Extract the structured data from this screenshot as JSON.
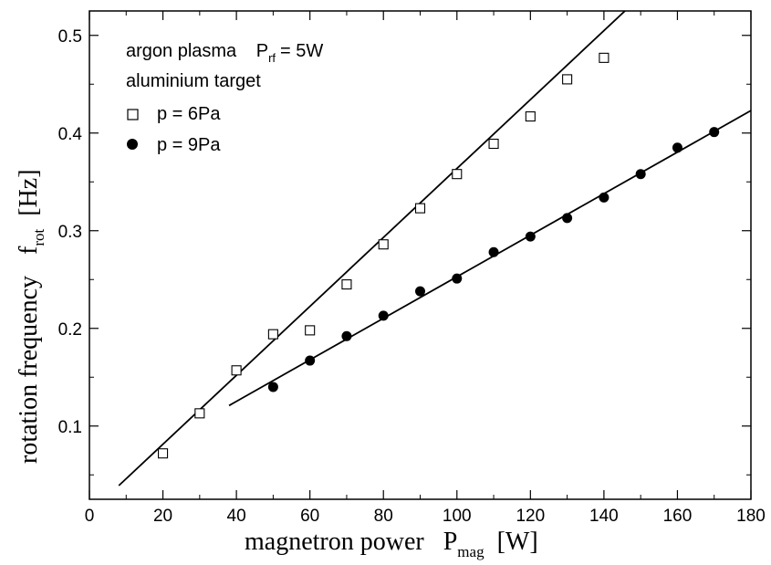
{
  "chart_data": {
    "type": "scatter",
    "title": "",
    "xlabel": {
      "main": "magnetron power",
      "symbol": "P",
      "subscript": "mag",
      "unit": "[W]"
    },
    "ylabel": {
      "main": "rotation frequency",
      "symbol": "f",
      "subscript": "rot",
      "unit": "[Hz]"
    },
    "xlim": [
      0,
      180
    ],
    "ylim": [
      0.025,
      0.525
    ],
    "xticks": [
      0,
      20,
      40,
      60,
      80,
      100,
      120,
      140,
      160,
      180
    ],
    "xtick_labels": [
      "0",
      "20",
      "40",
      "60",
      "80",
      "100",
      "120",
      "140",
      "160",
      "180"
    ],
    "yticks": [
      0.1,
      0.2,
      0.3,
      0.4,
      0.5
    ],
    "ytick_labels": [
      "0.1",
      "0.2",
      "0.3",
      "0.4",
      "0.5"
    ],
    "grid": false,
    "legend_position": "top-left",
    "annotations": [
      {
        "text": "argon plasma",
        "symbol": "P",
        "subscript": "rf",
        "value": "= 5W"
      },
      {
        "text": "aluminium target"
      }
    ],
    "series": [
      {
        "name": "p = 6Pa",
        "marker": "open-square",
        "x": [
          20,
          30,
          40,
          50,
          60,
          70,
          80,
          90,
          100,
          110,
          120,
          130,
          140
        ],
        "y": [
          0.072,
          0.113,
          0.157,
          0.194,
          0.198,
          0.245,
          0.286,
          0.323,
          0.358,
          0.389,
          0.417,
          0.455,
          0.477
        ],
        "fit_line": {
          "x": [
            8,
            146
          ],
          "y": [
            0.039,
            0.526
          ]
        }
      },
      {
        "name": "p = 9Pa",
        "marker": "filled-circle",
        "x": [
          50,
          60,
          70,
          80,
          90,
          100,
          110,
          120,
          130,
          140,
          150,
          160,
          170
        ],
        "y": [
          0.14,
          0.167,
          0.192,
          0.213,
          0.238,
          0.251,
          0.278,
          0.294,
          0.313,
          0.334,
          0.358,
          0.385,
          0.401
        ],
        "fit_line": {
          "x": [
            38,
            180
          ],
          "y": [
            0.121,
            0.423
          ]
        }
      }
    ]
  },
  "colors": {
    "ink": "#000000",
    "background": "#ffffff"
  }
}
